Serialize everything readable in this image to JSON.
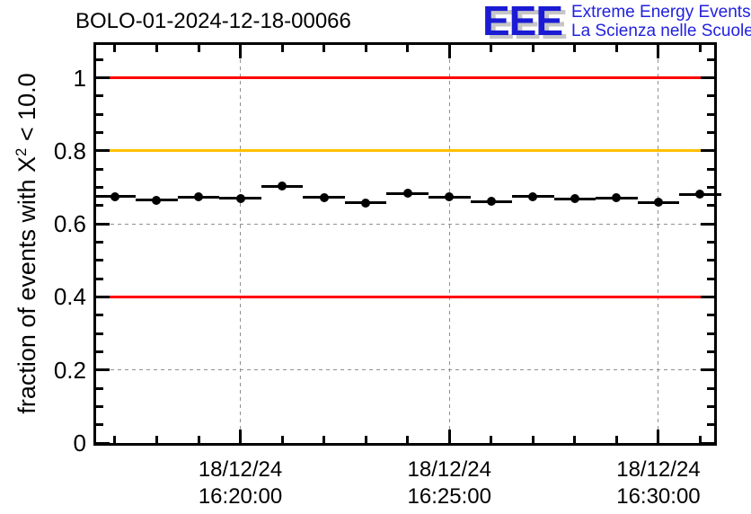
{
  "header": {
    "title": "BOLO-01-2024-12-18-00066"
  },
  "logo": {
    "acronym": "EEE",
    "tagline_line1": "Extreme Energy Events",
    "tagline_line2": "La Scienza nelle Scuole",
    "acronym_color": "#1b1bd4",
    "tagline_color": "#2222dd",
    "shadow_color": "#c6c6c6"
  },
  "chart_data": {
    "type": "scatter",
    "title": "BOLO-01-2024-12-18-00066",
    "ylabel": "fraction of events with X² < 10.0",
    "ylabel_prefix": "fraction of events with X",
    "ylabel_sup": "2",
    "ylabel_suffix": " < 10.0",
    "ylim": [
      0,
      1.09
    ],
    "yticks": [
      0,
      0.2,
      0.4,
      0.6,
      0.8,
      1.0
    ],
    "ytick_labels": [
      "0",
      "0.2",
      "0.4",
      "0.6",
      "0.8",
      "1"
    ],
    "y_minor_tick_step": 0.05,
    "grid": true,
    "grid_color": "#909090",
    "frame_color": "#000000",
    "x_axis": {
      "min_time": "16:16:33",
      "max_time": "16:31:20",
      "minor_tick_interval_seconds": 60,
      "major_ticks": [
        {
          "date": "18/12/24",
          "time": "16:20:00"
        },
        {
          "date": "18/12/24",
          "time": "16:25:00"
        },
        {
          "date": "18/12/24",
          "time": "16:30:00"
        }
      ]
    },
    "reference_lines": [
      {
        "name": "upper-red-line",
        "y": 1.0,
        "color": "#ff0000"
      },
      {
        "name": "orange-warning-line",
        "y": 0.8,
        "color": "#ffc000"
      },
      {
        "name": "lower-red-line",
        "y": 0.4,
        "color": "#ff0000"
      }
    ],
    "series": [
      {
        "name": "fraction-of-events-per-minute",
        "marker": "filled-circle",
        "color": "#000000",
        "x_error_seconds": 30,
        "points": [
          {
            "time": "16:17:00",
            "y": 0.675
          },
          {
            "time": "16:18:00",
            "y": 0.665
          },
          {
            "time": "16:19:00",
            "y": 0.673
          },
          {
            "time": "16:20:00",
            "y": 0.67
          },
          {
            "time": "16:21:00",
            "y": 0.703
          },
          {
            "time": "16:22:00",
            "y": 0.672
          },
          {
            "time": "16:23:00",
            "y": 0.658
          },
          {
            "time": "16:24:00",
            "y": 0.684
          },
          {
            "time": "16:25:00",
            "y": 0.673
          },
          {
            "time": "16:26:00",
            "y": 0.661
          },
          {
            "time": "16:27:00",
            "y": 0.675
          },
          {
            "time": "16:28:00",
            "y": 0.669
          },
          {
            "time": "16:29:00",
            "y": 0.671
          },
          {
            "time": "16:30:00",
            "y": 0.659
          },
          {
            "time": "16:31:00",
            "y": 0.681
          }
        ]
      }
    ]
  }
}
